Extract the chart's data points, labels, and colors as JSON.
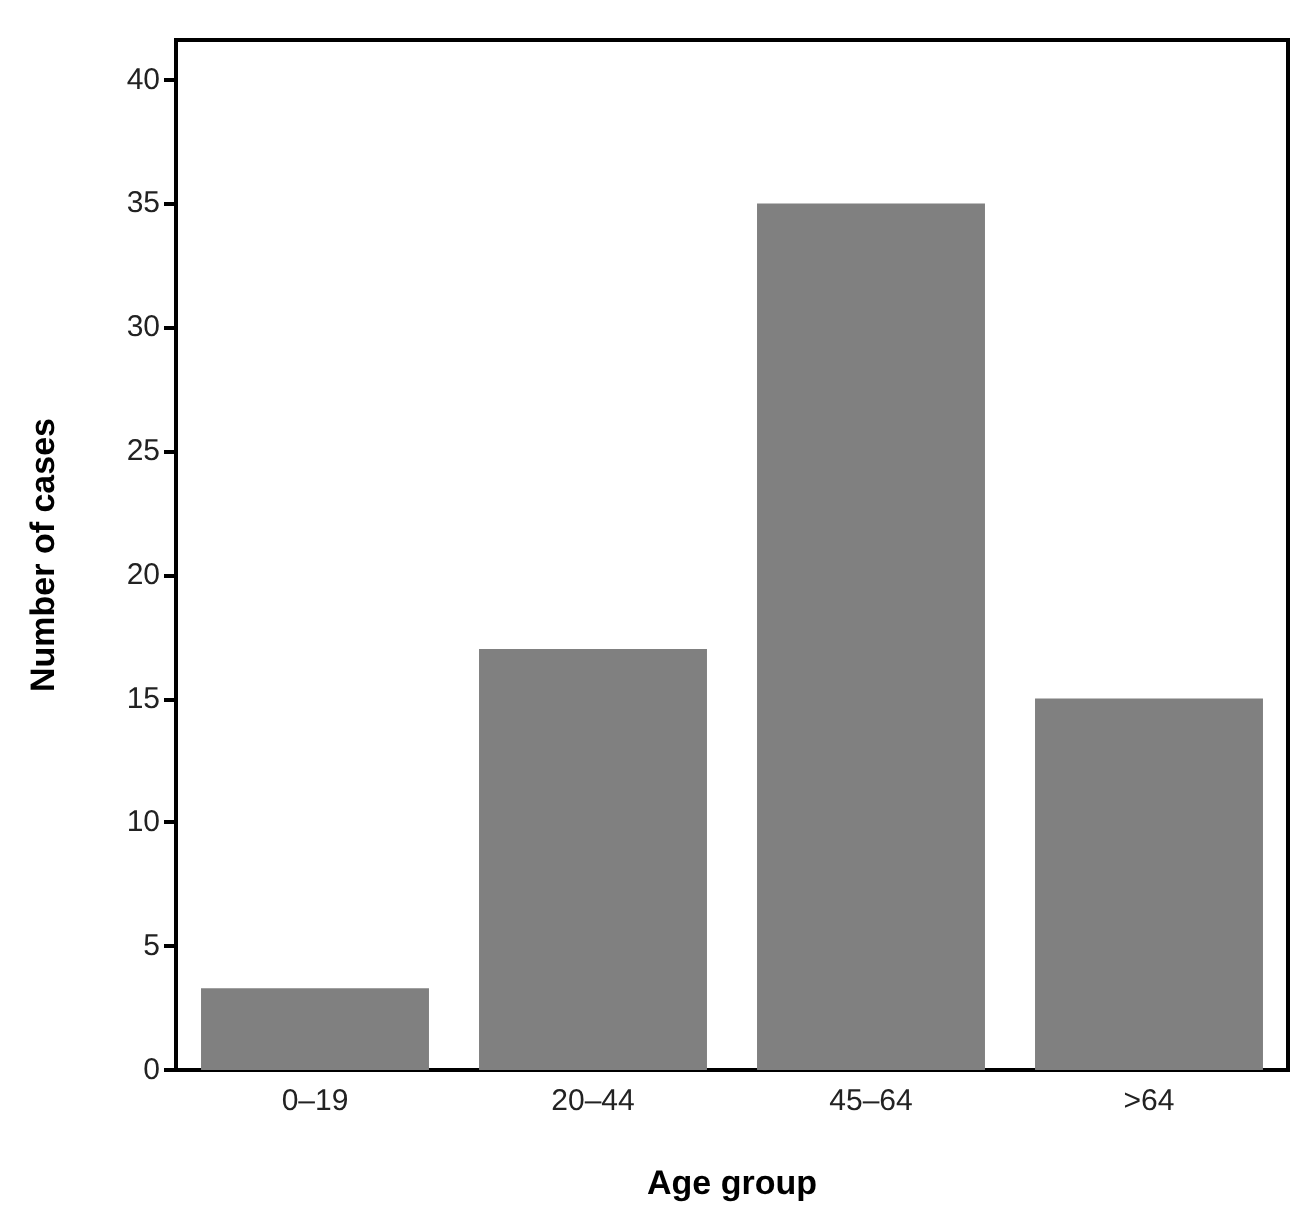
{
  "chart_data": {
    "type": "bar",
    "xlabel": "Age group",
    "ylabel": "Number of cases",
    "categories": [
      "0–19",
      "20–44",
      "45–64",
      ">64"
    ],
    "values": [
      3.3,
      17,
      35,
      15
    ],
    "color": "#808080",
    "ylim": [
      0,
      41.6
    ],
    "yticks": [
      0,
      5,
      10,
      15,
      20,
      25,
      30,
      35,
      40
    ],
    "grid": false
  }
}
